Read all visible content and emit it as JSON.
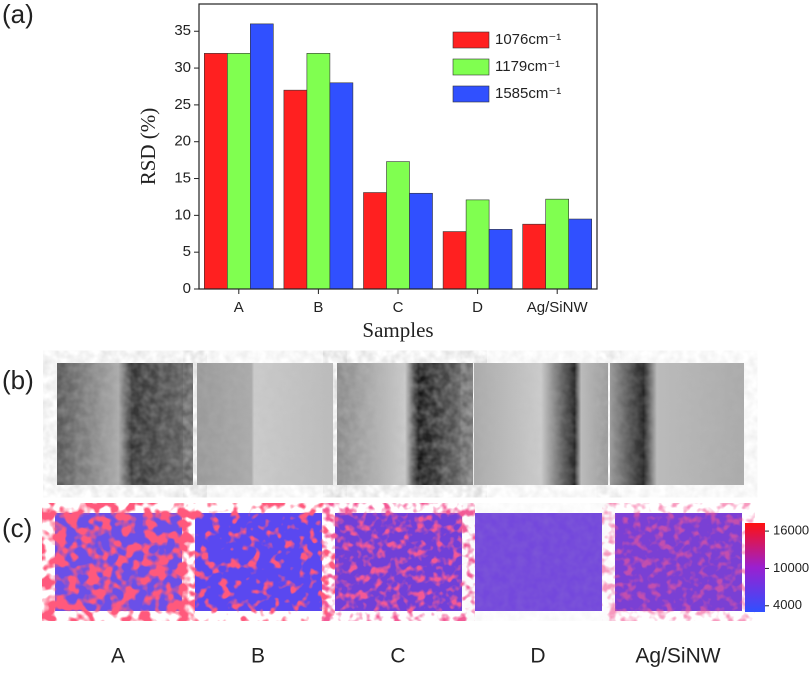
{
  "chart_data": {
    "type": "bar",
    "y_label": "RSD (%)",
    "x_label": "Samples",
    "categories": [
      "A",
      "B",
      "C",
      "D",
      "Ag/SiNW"
    ],
    "series": [
      {
        "name": "1076cm⁻¹",
        "color": "#ff2020",
        "values": [
          32,
          27,
          13.1,
          7.8,
          8.8
        ]
      },
      {
        "name": "1179cm⁻¹",
        "color": "#80ff50",
        "values": [
          32,
          32,
          17.3,
          12.1,
          12.2
        ]
      },
      {
        "name": "1585cm⁻¹",
        "color": "#3050ff",
        "values": [
          36,
          28,
          13.0,
          8.1,
          9.5
        ]
      }
    ],
    "ylim": [
      0,
      38.7
    ],
    "yticks": [
      0,
      5,
      10,
      15,
      20,
      25,
      30,
      35
    ],
    "grid": false,
    "legend": "upper right"
  },
  "panels": [
    "(a)",
    "(b)",
    "(c)"
  ],
  "map_labels": [
    "A",
    "B",
    "C",
    "D",
    "Ag/SiNW"
  ],
  "colorbar": {
    "lim": [
      3000,
      17300
    ],
    "ticks": [
      16000,
      10000,
      4000
    ]
  }
}
